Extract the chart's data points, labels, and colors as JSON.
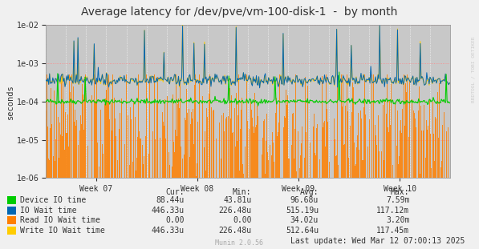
{
  "title": "Average latency for /dev/pve/vm-100-disk-1  -  by month",
  "ylabel": "seconds",
  "watermark": "RRDTOOL / TOBI OETIKER",
  "munin_version": "Munin 2.0.56",
  "last_update": "Last update: Wed Mar 12 07:00:13 2025",
  "x_tick_labels": [
    "Week 07",
    "Week 08",
    "Week 09",
    "Week 10"
  ],
  "ylim_log_min": -6,
  "ylim_log_max": -2,
  "background_color": "#f0f0f0",
  "plot_bg_color": "#c8c8c8",
  "grid_major_color": "#ffffff",
  "grid_minor_color": "#dddddd",
  "border_color": "#aaaaaa",
  "colors": {
    "green": "#00cc00",
    "blue": "#0066b3",
    "orange": "#ff7f00",
    "yellow": "#ffcc00"
  },
  "legend_labels": [
    "Device IO time",
    "IO Wait time",
    "Read IO Wait time",
    "Write IO Wait time"
  ],
  "stats_headers": [
    "Cur:",
    "Min:",
    "Avg:",
    "Max:"
  ],
  "stats": [
    [
      "88.44u",
      "43.81u",
      "96.68u",
      "7.59m"
    ],
    [
      "446.33u",
      "226.48u",
      "515.19u",
      "117.12m"
    ],
    [
      "0.00",
      "0.00",
      "34.02u",
      "3.20m"
    ],
    [
      "446.33u",
      "226.48u",
      "512.64u",
      "117.45m"
    ]
  ],
  "title_fontsize": 10,
  "axis_fontsize": 7,
  "legend_fontsize": 7,
  "seed": 42,
  "n_points": 500
}
